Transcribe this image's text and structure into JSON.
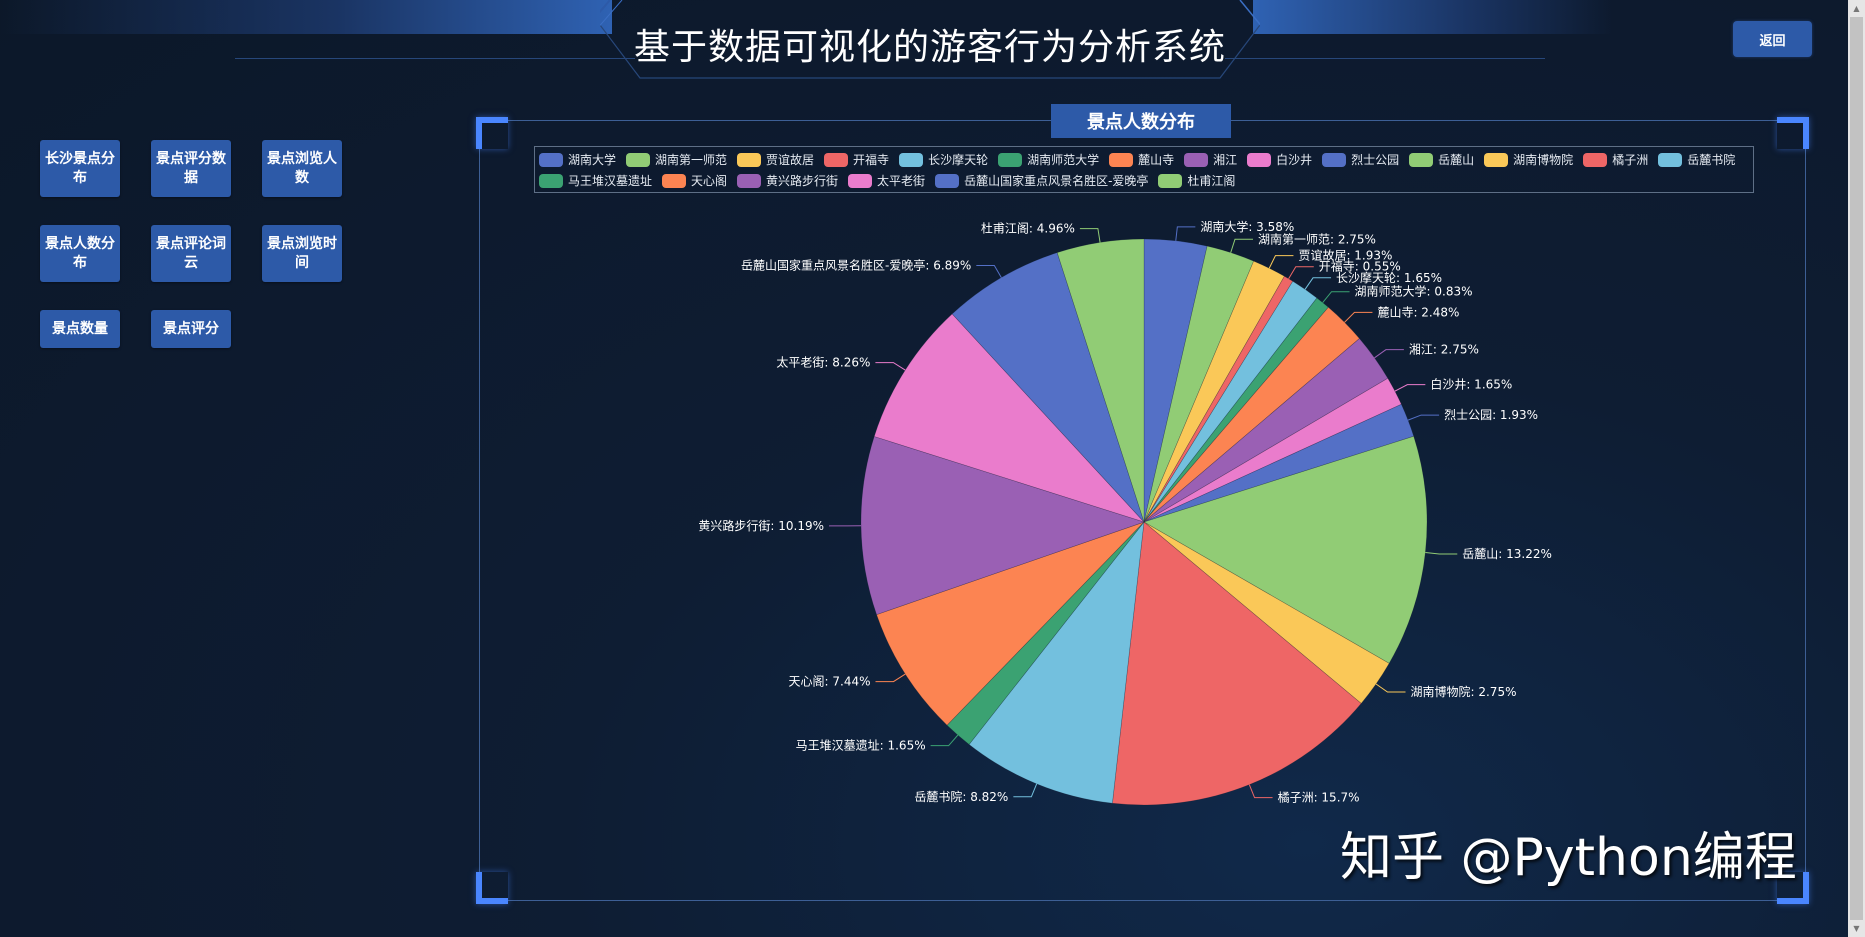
{
  "header": {
    "title": "基于数据可视化的游客行为分析系统",
    "back_label": "返回"
  },
  "nav": {
    "buttons": [
      {
        "label": "长沙景点分布"
      },
      {
        "label": "景点评分数据"
      },
      {
        "label": "景点浏览人数"
      },
      {
        "label": "景点人数分布"
      },
      {
        "label": "景点评论词云"
      },
      {
        "label": "景点浏览时间"
      },
      {
        "label": "景点数量"
      },
      {
        "label": "景点评分"
      }
    ]
  },
  "panel": {
    "title": "景点人数分布"
  },
  "watermark": "知乎 @Python编程",
  "colors": {
    "background": "#0d1a2e",
    "button": "#2d5aa8",
    "corner_accent": "#4a86ff",
    "panel_border": "#3d5f95"
  },
  "chart_data": {
    "type": "pie",
    "title": "景点人数分布",
    "start_angle": 90,
    "direction": "clockwise",
    "label_format": "{name}: {percent}%",
    "legend_position": "top",
    "series": [
      {
        "name": "湖南大学",
        "value": 3.58,
        "color": "#5470c6"
      },
      {
        "name": "湖南第一师范",
        "value": 2.75,
        "color": "#91cc75"
      },
      {
        "name": "贾谊故居",
        "value": 1.93,
        "color": "#fac858"
      },
      {
        "name": "开福寺",
        "value": 0.55,
        "color": "#ee6666"
      },
      {
        "name": "长沙摩天轮",
        "value": 1.65,
        "color": "#73c0de"
      },
      {
        "name": "湖南师范大学",
        "value": 0.83,
        "color": "#3ba272"
      },
      {
        "name": "麓山寺",
        "value": 2.48,
        "color": "#fc8452"
      },
      {
        "name": "湘江",
        "value": 2.75,
        "color": "#9a60b4"
      },
      {
        "name": "白沙井",
        "value": 1.65,
        "color": "#ea7ccc"
      },
      {
        "name": "烈士公园",
        "value": 1.93,
        "color": "#5470c6"
      },
      {
        "name": "岳麓山",
        "value": 13.22,
        "color": "#91cc75"
      },
      {
        "name": "湖南博物院",
        "value": 2.75,
        "color": "#fac858"
      },
      {
        "name": "橘子洲",
        "value": 15.7,
        "color": "#ee6666"
      },
      {
        "name": "岳麓书院",
        "value": 8.82,
        "color": "#73c0de"
      },
      {
        "name": "马王堆汉墓遗址",
        "value": 1.65,
        "color": "#3ba272"
      },
      {
        "name": "天心阁",
        "value": 7.44,
        "color": "#fc8452"
      },
      {
        "name": "黄兴路步行街",
        "value": 10.19,
        "color": "#9a60b4"
      },
      {
        "name": "太平老街",
        "value": 8.26,
        "color": "#ea7ccc"
      },
      {
        "name": "岳麓山国家重点风景名胜区-爱晚亭",
        "value": 6.89,
        "color": "#5470c6"
      },
      {
        "name": "杜甫江阁",
        "value": 4.96,
        "color": "#91cc75"
      }
    ]
  }
}
